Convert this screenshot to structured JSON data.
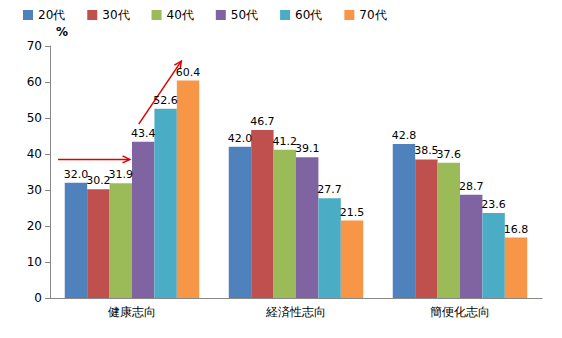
{
  "chart_data": {
    "type": "bar",
    "ylabel": "%",
    "categories": [
      "健康志向",
      "経済性志向",
      "簡便化志向"
    ],
    "series": [
      {
        "name": "20代",
        "color": "#4f81bd",
        "values": [
          32.0,
          42.0,
          42.8
        ],
        "value_labels": [
          "32.0",
          "42.0",
          "42.8"
        ]
      },
      {
        "name": "30代",
        "color": "#c0504d",
        "values": [
          30.2,
          46.7,
          38.5
        ],
        "value_labels": [
          "30.2",
          "46.7",
          "38.5"
        ]
      },
      {
        "name": "40代",
        "color": "#9bbb59",
        "values": [
          31.9,
          41.2,
          37.6
        ],
        "value_labels": [
          "31.9",
          "41.2",
          "37.6"
        ]
      },
      {
        "name": "50代",
        "color": "#8064a2",
        "values": [
          43.4,
          39.1,
          28.7
        ],
        "value_labels": [
          "43.4",
          "39.1",
          "28.7"
        ]
      },
      {
        "name": "60代",
        "color": "#4bacc6",
        "values": [
          52.6,
          27.7,
          23.6
        ],
        "value_labels": [
          "52.6",
          "27.7",
          "23.6"
        ]
      },
      {
        "name": "70代",
        "color": "#f79646",
        "values": [
          60.4,
          21.5,
          16.8
        ],
        "value_labels": [
          "60.4",
          "21.5",
          "16.8"
        ]
      }
    ],
    "ylim": [
      0,
      70
    ],
    "yticks": [
      0,
      10,
      20,
      30,
      40,
      50,
      60,
      70
    ],
    "grid": false,
    "legend": "top-left",
    "data_labels": true
  }
}
